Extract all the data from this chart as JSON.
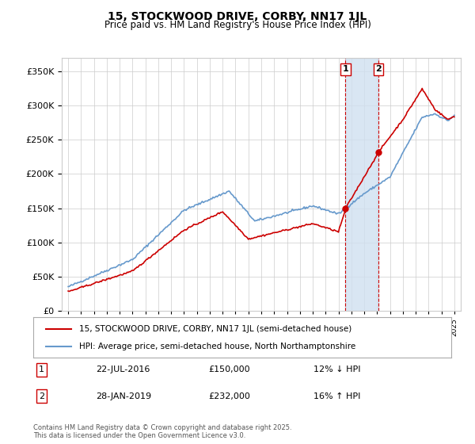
{
  "title": "15, STOCKWOOD DRIVE, CORBY, NN17 1JL",
  "subtitle": "Price paid vs. HM Land Registry's House Price Index (HPI)",
  "legend_line1": "15, STOCKWOOD DRIVE, CORBY, NN17 1JL (semi-detached house)",
  "legend_line2": "HPI: Average price, semi-detached house, North Northamptonshire",
  "footnote": "Contains HM Land Registry data © Crown copyright and database right 2025.\nThis data is licensed under the Open Government Licence v3.0.",
  "sale1_date": "22-JUL-2016",
  "sale1_price": "£150,000",
  "sale1_hpi": "12% ↓ HPI",
  "sale2_date": "28-JAN-2019",
  "sale2_price": "£232,000",
  "sale2_hpi": "16% ↑ HPI",
  "hpi_line_color": "#6699cc",
  "price_line_color": "#cc0000",
  "sale1_marker_color": "#cc0000",
  "sale2_marker_color": "#cc0000",
  "vspan_color": "#d0e0f0",
  "vline_color": "#cc0000",
  "background_color": "#ffffff",
  "grid_color": "#cccccc",
  "ylim": [
    0,
    370000
  ],
  "yticks": [
    0,
    50000,
    100000,
    150000,
    200000,
    250000,
    300000,
    350000
  ],
  "sale1_x": 2016.55,
  "sale2_x": 2019.08
}
